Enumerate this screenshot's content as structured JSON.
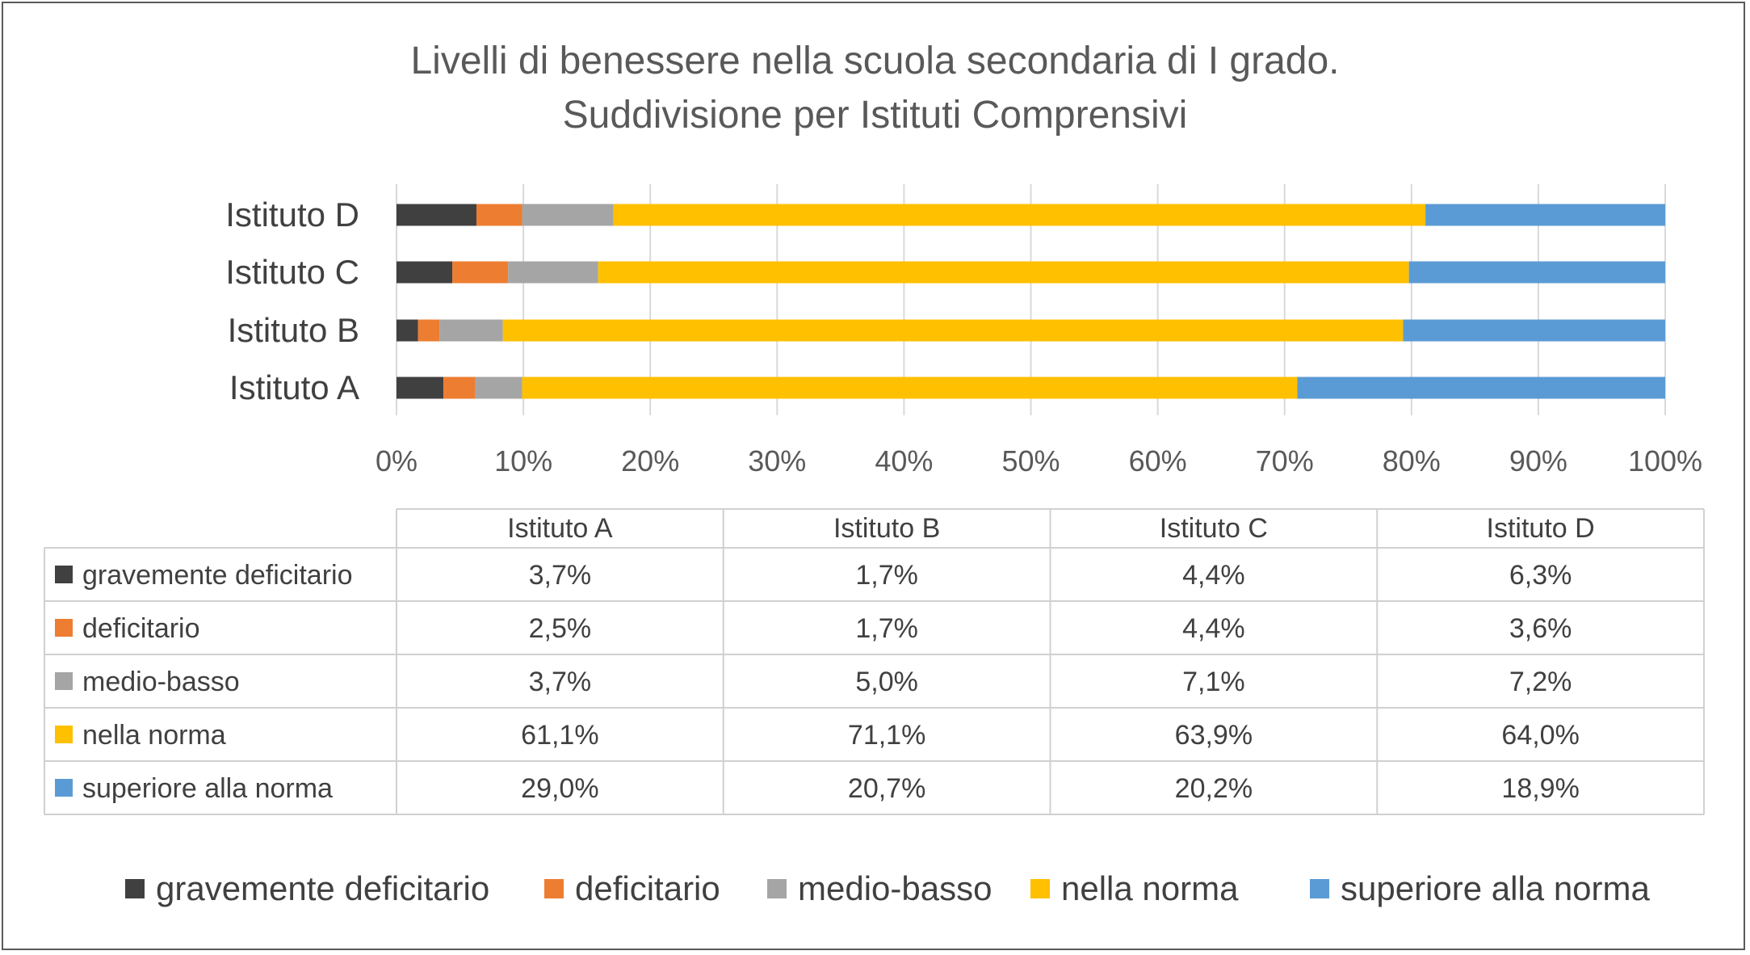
{
  "chart_data": {
    "type": "bar",
    "orientation": "horizontal",
    "stacked": "percent",
    "title": "Livelli di benessere nella scuola secondaria di I grado.",
    "subtitle": "Suddivisione per Istituti Comprensivi",
    "categories": [
      "Istituto A",
      "Istituto B",
      "Istituto C",
      "Istituto D"
    ],
    "series": [
      {
        "name": "gravemente deficitario",
        "color": "#404040",
        "values": [
          3.7,
          1.7,
          4.4,
          6.3
        ],
        "labels": [
          "3,7%",
          "1,7%",
          "4,4%",
          "6,3%"
        ]
      },
      {
        "name": "deficitario",
        "color": "#ED7D31",
        "values": [
          2.5,
          1.7,
          4.4,
          3.6
        ],
        "labels": [
          "2,5%",
          "1,7%",
          "4,4%",
          "3,6%"
        ]
      },
      {
        "name": "medio-basso",
        "color": "#A5A5A5",
        "values": [
          3.7,
          5.0,
          7.1,
          7.2
        ],
        "labels": [
          "3,7%",
          "5,0%",
          "7,1%",
          "7,2%"
        ]
      },
      {
        "name": "nella norma",
        "color": "#FFC000",
        "values": [
          61.1,
          71.1,
          63.9,
          64.0
        ],
        "labels": [
          "61,1%",
          "71,1%",
          "63,9%",
          "64,0%"
        ]
      },
      {
        "name": "superiore alla norma",
        "color": "#5B9BD5",
        "values": [
          29.0,
          20.7,
          20.2,
          18.9
        ],
        "labels": [
          "29,0%",
          "20,7%",
          "20,2%",
          "18,9%"
        ]
      }
    ],
    "xlim": [
      0,
      100
    ],
    "xticks": [
      "0%",
      "10%",
      "20%",
      "30%",
      "40%",
      "50%",
      "60%",
      "70%",
      "80%",
      "90%",
      "100%"
    ],
    "grid": true,
    "data_table": true,
    "legend": "bottom"
  }
}
